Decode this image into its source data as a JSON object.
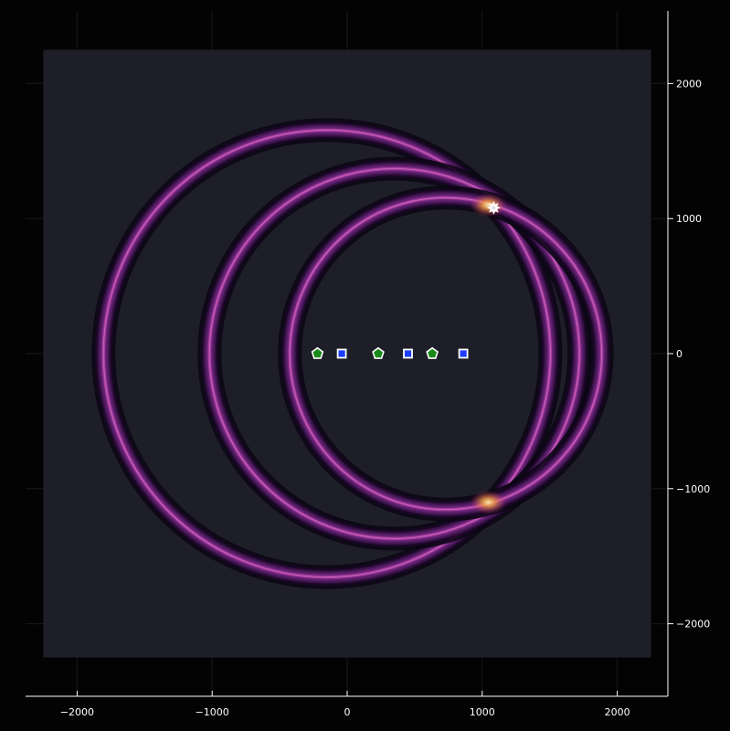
{
  "chart_data": {
    "type": "heatmap",
    "title": "",
    "xlabel": "",
    "ylabel": "",
    "xlim": [
      -2400,
      2400
    ],
    "ylim": [
      -2500,
      2500
    ],
    "heatmap_extent": {
      "x": [
        -2250,
        2250
      ],
      "y": [
        -2250,
        2250
      ]
    },
    "x_ticks": [
      -2000,
      -1000,
      0,
      1000,
      2000
    ],
    "y_ticks": [
      2000,
      1000,
      0,
      -1000,
      -2000
    ],
    "x_tick_labels": [
      "−2000",
      "−1000",
      "0",
      "1000",
      "2000"
    ],
    "y_tick_labels": [
      "2000",
      "1000",
      "0",
      "−1000",
      "−2000"
    ],
    "grid": true,
    "colormap": "inferno",
    "colors": {
      "page_background": "#030303",
      "heatmap_background": "#1e1e29",
      "ring_core": "#a83ea0",
      "ring_halo": "#0b0714",
      "intersection_glow": "#f7a53a",
      "axis": "#ffffff",
      "grid": "#181818",
      "sensor_fill": "#1f3dff",
      "source_fill": "#1a8a1a",
      "estimate_fill": "#ffffff"
    },
    "rings": [
      {
        "center": [
          -150,
          0
        ],
        "radius": 1655
      },
      {
        "center": [
          350,
          0
        ],
        "radius": 1370
      },
      {
        "center": [
          730,
          0
        ],
        "radius": 1155
      }
    ],
    "series": [
      {
        "marker": "square",
        "x": [
          -40,
          450,
          860
        ],
        "y": [
          0,
          0,
          0
        ]
      },
      {
        "marker": "pentagon",
        "x": [
          -220,
          230,
          630
        ],
        "y": [
          0,
          0,
          0
        ]
      },
      {
        "marker": "star",
        "x": [
          1085
        ],
        "y": [
          1080
        ]
      }
    ]
  }
}
